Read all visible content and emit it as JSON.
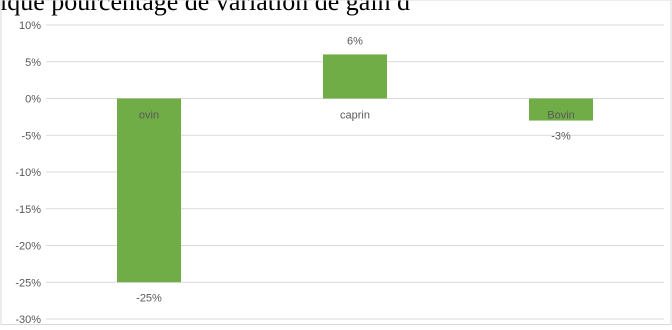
{
  "header": {
    "partial_text": "lque pourcentage de variation de gain d"
  },
  "chart_data": {
    "type": "bar",
    "title": "",
    "xlabel": "",
    "ylabel": "",
    "categories": [
      "ovin",
      "caprin",
      "Bovin"
    ],
    "values": [
      -25,
      6,
      -3
    ],
    "value_labels": [
      "-25%",
      "6%",
      "-3%"
    ],
    "ylim": [
      -30,
      10
    ],
    "yticks": [
      10,
      5,
      0,
      -5,
      -10,
      -15,
      -20,
      -25,
      -30
    ],
    "ytick_labels": [
      "10%",
      "5%",
      "0%",
      "-5%",
      "-10%",
      "-15%",
      "-20%",
      "-25%",
      "-30%"
    ],
    "grid": true,
    "legend": "none",
    "colors": {
      "bar": "#70ad47",
      "grid": "#d9d9d9",
      "text": "#595959"
    }
  }
}
